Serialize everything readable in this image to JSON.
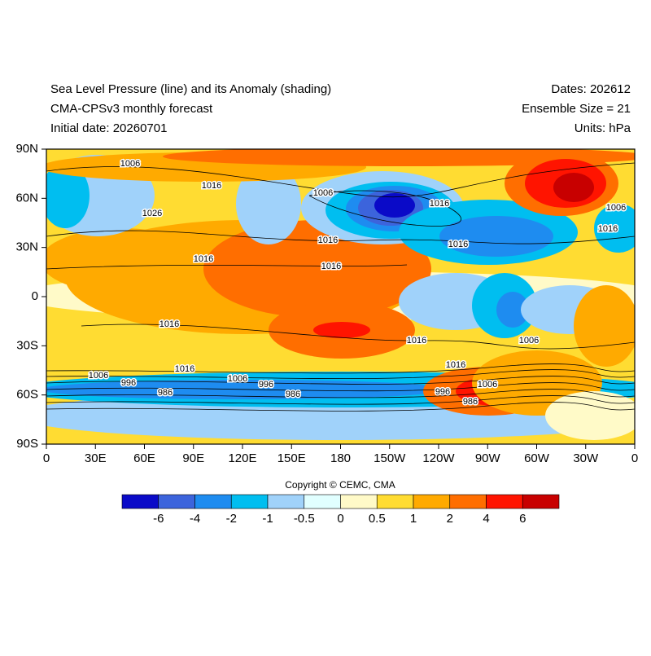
{
  "header": {
    "left": [
      "Sea Level Pressure (line) and its Anomaly (shading)",
      "CMA-CPSv3 monthly forecast",
      "Initial date: 20260701"
    ],
    "right": [
      "Dates: 202612",
      "Ensemble Size = 21",
      "Units: hPa"
    ]
  },
  "map": {
    "lon_ticks": [
      "0",
      "30E",
      "60E",
      "90E",
      "120E",
      "150E",
      "180",
      "150W",
      "120W",
      "90W",
      "60W",
      "30W",
      "0"
    ],
    "lat_ticks": [
      "90N",
      "60N",
      "30N",
      "0",
      "30S",
      "60S",
      "90S"
    ],
    "contour_labels": [
      "1006",
      "1016",
      "1026",
      "1016",
      "1006",
      "1016",
      "1016",
      "1016",
      "1016",
      "1006",
      "1016",
      "1016",
      "1016",
      "1016",
      "1006",
      "1016",
      "1006",
      "996",
      "986",
      "1006",
      "996",
      "986",
      "1006",
      "996",
      "986"
    ]
  },
  "copyright": "Copyright © CEMC, CMA",
  "colorbar": {
    "colors": [
      "#0a0ac8",
      "#3c64dc",
      "#1e8cf0",
      "#00bef0",
      "#a0d2fa",
      "#e1ffff",
      "#fffac8",
      "#ffdc32",
      "#ffaa00",
      "#ff6e00",
      "#ff1400",
      "#c80000"
    ],
    "levels": [
      -6,
      -4,
      -2,
      -1,
      -0.5,
      0,
      0.5,
      1,
      2,
      4,
      6
    ]
  }
}
